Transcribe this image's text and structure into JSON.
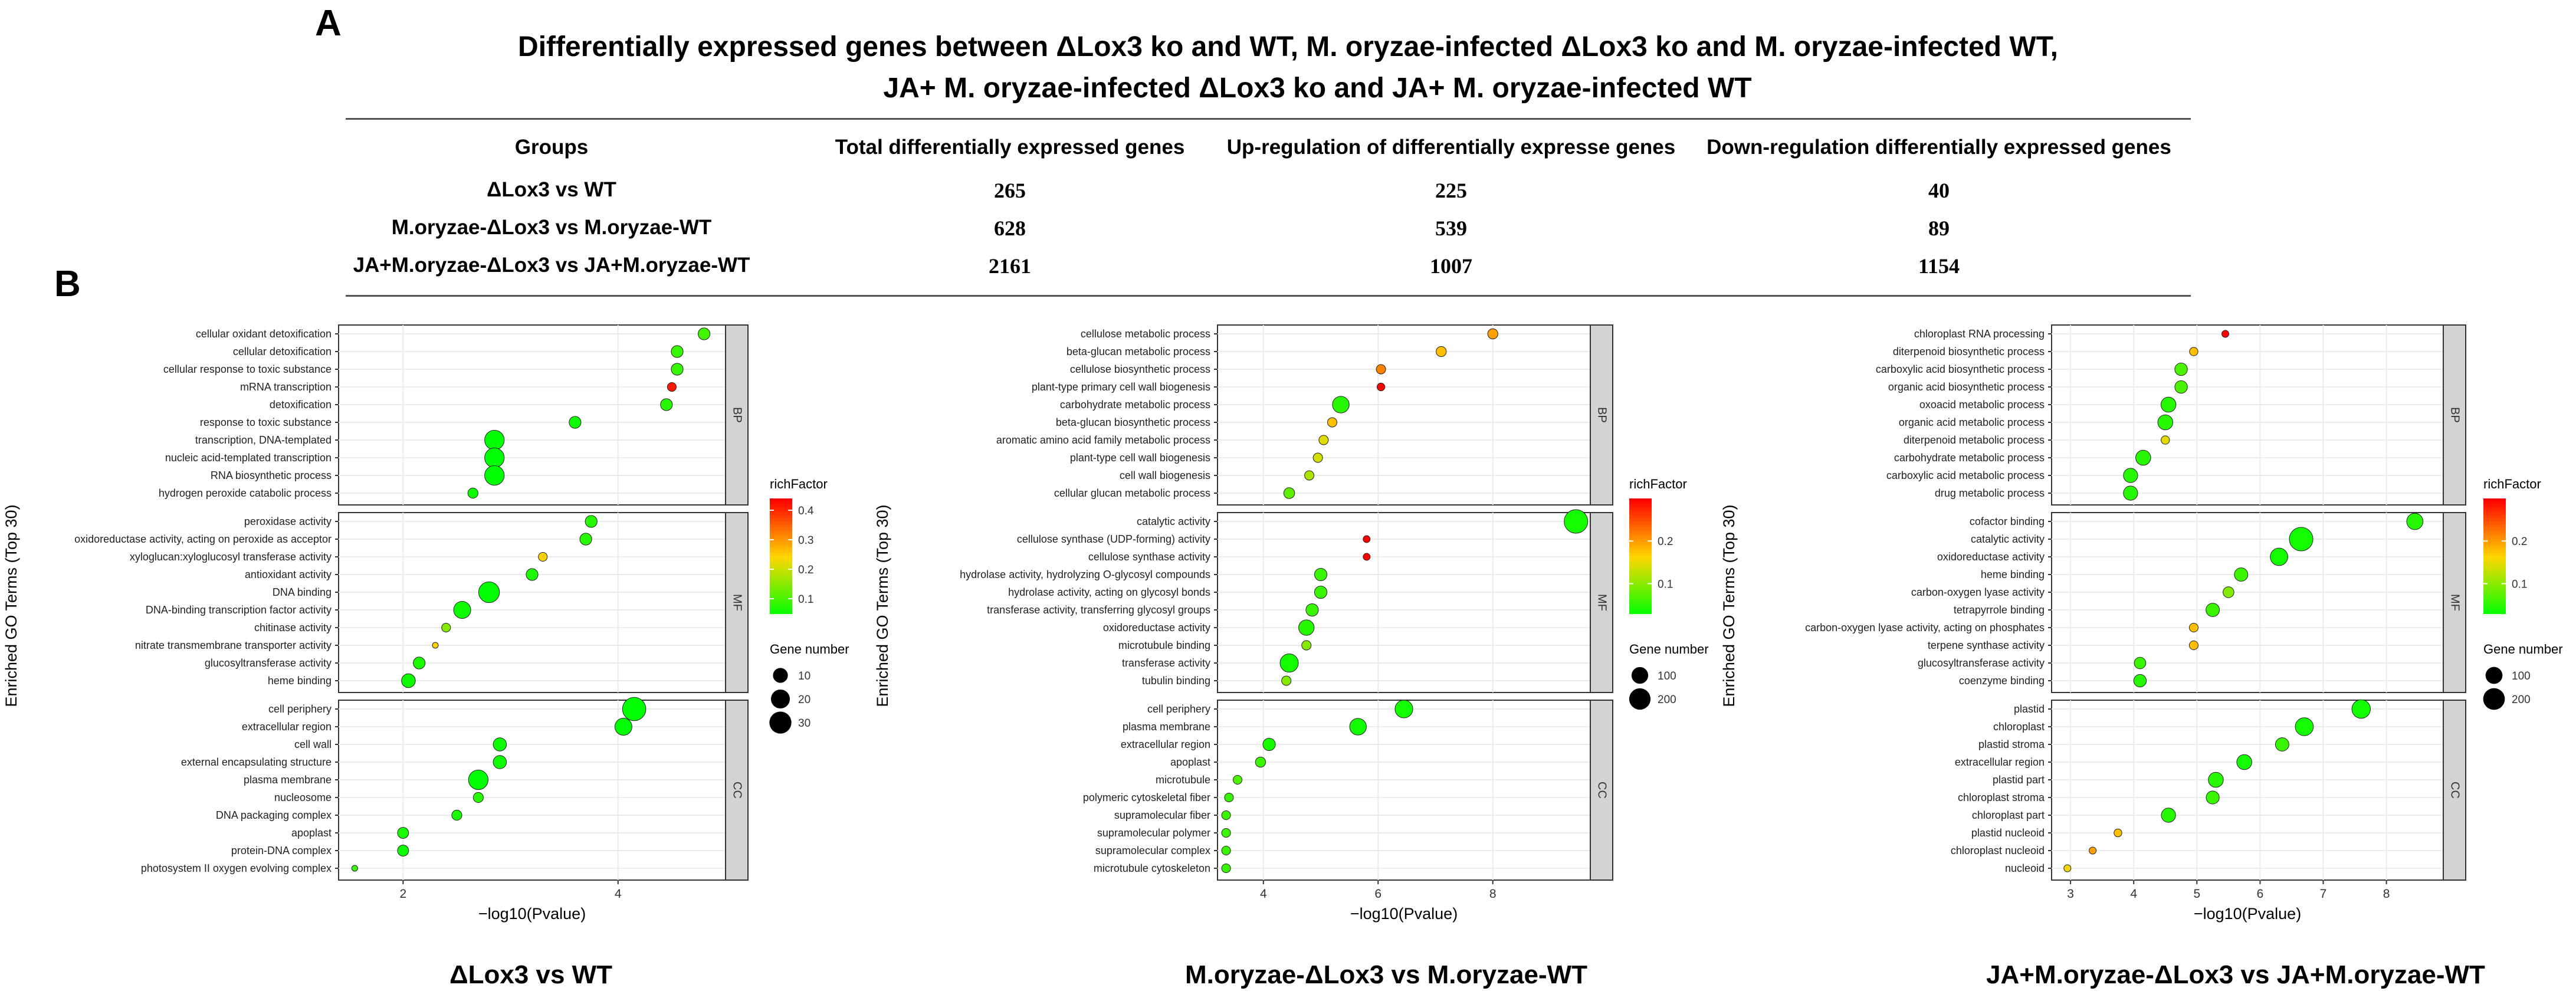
{
  "panel_a": {
    "label": "A",
    "title_line1": "Differentially expressed genes between ΔLox3 ko and WT, M. oryzae-infected ΔLox3 ko and M. oryzae-infected WT,",
    "title_line2": "JA+ M. oryzae-infected ΔLox3 ko  and JA+ M. oryzae-infected WT",
    "headers": [
      "Groups",
      "Total differentially expressed genes",
      "Up-regulation of differentially expresse genes",
      "Down-regulation differentially expressed genes"
    ],
    "rows": [
      {
        "group": "ΔLox3 vs WT",
        "total": "265",
        "up": "225",
        "down": "40"
      },
      {
        "group": "M.oryzae-ΔLox3 vs M.oryzae-WT",
        "total": "628",
        "up": "539",
        "down": "89"
      },
      {
        "group": "JA+M.oryzae-ΔLox3 vs JA+M.oryzae-WT",
        "total": "2161",
        "up": "1007",
        "down": "1154"
      }
    ]
  },
  "panel_b": {
    "label": "B",
    "captions": [
      "ΔLox3 vs WT",
      "M.oryzae-ΔLox3 vs M.oryzae-WT",
      "JA+M.oryzae-ΔLox3 vs JA+M.oryzae-WT"
    ]
  },
  "chart_data": [
    {
      "type": "scatter",
      "title": "ΔLox3 vs WT",
      "xlabel": "−log10(Pvalue)",
      "ylabel": "Enriched GO Terms (Top 30)",
      "xlim": [
        1.4,
        5.0
      ],
      "xticks": [
        2,
        4
      ],
      "color_legend": {
        "title": "richFactor",
        "min": 0.05,
        "max": 0.44,
        "ticks": [
          0.1,
          0.2,
          0.3,
          0.4
        ]
      },
      "size_legend": {
        "title": "Gene number",
        "values": [
          10,
          20,
          30
        ],
        "min": 1,
        "max": 36
      },
      "facets": [
        {
          "name": "BP",
          "terms": [
            {
              "term": "cellular oxidant detoxification",
              "x": 4.8,
              "rich": 0.1,
              "n": 5
            },
            {
              "term": "cellular detoxification",
              "x": 4.55,
              "rich": 0.09,
              "n": 5
            },
            {
              "term": "cellular response to toxic substance",
              "x": 4.55,
              "rich": 0.09,
              "n": 5
            },
            {
              "term": "mRNA transcription",
              "x": 4.5,
              "rich": 0.42,
              "n": 2
            },
            {
              "term": "detoxification",
              "x": 4.45,
              "rich": 0.08,
              "n": 5
            },
            {
              "term": "response to toxic substance",
              "x": 3.6,
              "rich": 0.06,
              "n": 5
            },
            {
              "term": "transcription, DNA-templated",
              "x": 2.85,
              "rich": 0.05,
              "n": 22
            },
            {
              "term": "nucleic acid-templated transcription",
              "x": 2.85,
              "rich": 0.05,
              "n": 22
            },
            {
              "term": "RNA biosynthetic process",
              "x": 2.85,
              "rich": 0.05,
              "n": 22
            },
            {
              "term": "hydrogen peroxide catabolic process",
              "x": 2.65,
              "rich": 0.06,
              "n": 3
            }
          ]
        },
        {
          "name": "MF",
          "terms": [
            {
              "term": "peroxidase activity",
              "x": 3.75,
              "rich": 0.08,
              "n": 5
            },
            {
              "term": "oxidoreductase activity, acting on peroxide as acceptor",
              "x": 3.7,
              "rich": 0.08,
              "n": 5
            },
            {
              "term": "xyloglucan:xyloglucosyl transferase activity",
              "x": 3.3,
              "rich": 0.25,
              "n": 2
            },
            {
              "term": "antioxidant activity",
              "x": 3.2,
              "rich": 0.07,
              "n": 5
            },
            {
              "term": "DNA binding",
              "x": 2.8,
              "rich": 0.05,
              "n": 26
            },
            {
              "term": "DNA-binding transcription factor activity",
              "x": 2.55,
              "rich": 0.06,
              "n": 15
            },
            {
              "term": "chitinase activity",
              "x": 2.4,
              "rich": 0.15,
              "n": 2
            },
            {
              "term": "nitrate transmembrane transporter activity",
              "x": 2.3,
              "rich": 0.25,
              "n": 1
            },
            {
              "term": "glucosyltransferase activity",
              "x": 2.15,
              "rich": 0.07,
              "n": 5
            },
            {
              "term": "heme binding",
              "x": 2.05,
              "rich": 0.06,
              "n": 8
            }
          ]
        },
        {
          "name": "CC",
          "terms": [
            {
              "term": "cell periphery",
              "x": 4.15,
              "rich": 0.05,
              "n": 35
            },
            {
              "term": "extracellular region",
              "x": 4.05,
              "rich": 0.05,
              "n": 15
            },
            {
              "term": "cell wall",
              "x": 2.9,
              "rich": 0.06,
              "n": 7
            },
            {
              "term": "external encapsulating structure",
              "x": 2.9,
              "rich": 0.06,
              "n": 7
            },
            {
              "term": "plasma membrane",
              "x": 2.7,
              "rich": 0.05,
              "n": 22
            },
            {
              "term": "nucleosome",
              "x": 2.7,
              "rich": 0.08,
              "n": 3
            },
            {
              "term": "DNA packaging complex",
              "x": 2.5,
              "rich": 0.07,
              "n": 3
            },
            {
              "term": "apoplast",
              "x": 2.0,
              "rich": 0.07,
              "n": 4
            },
            {
              "term": "protein-DNA complex",
              "x": 2.0,
              "rich": 0.06,
              "n": 4
            },
            {
              "term": "photosystem II oxygen evolving complex",
              "x": 1.55,
              "rich": 0.09,
              "n": 1
            }
          ]
        }
      ]
    },
    {
      "type": "scatter",
      "title": "M.oryzae-ΔLox3 vs M.oryzae-WT",
      "xlabel": "−log10(Pvalue)",
      "ylabel": "Enriched GO Terms (Top 30)",
      "xlim": [
        3.2,
        9.7
      ],
      "xticks": [
        4,
        6,
        8
      ],
      "color_legend": {
        "title": "richFactor",
        "min": 0.03,
        "max": 0.3,
        "ticks": [
          0.1,
          0.2
        ]
      },
      "size_legend": {
        "title": "Gene number",
        "values": [
          100,
          200
        ],
        "min": 5,
        "max": 260
      },
      "facets": [
        {
          "name": "BP",
          "terms": [
            {
              "term": "cellulose metabolic process",
              "x": 8.0,
              "rich": 0.2,
              "n": 20
            },
            {
              "term": "beta-glucan metabolic process",
              "x": 7.1,
              "rich": 0.18,
              "n": 20
            },
            {
              "term": "cellulose biosynthetic process",
              "x": 6.05,
              "rich": 0.22,
              "n": 15
            },
            {
              "term": "plant-type primary cell wall biogenesis",
              "x": 6.05,
              "rich": 0.3,
              "n": 8
            },
            {
              "term": "carbohydrate metabolic process",
              "x": 5.35,
              "rich": 0.05,
              "n": 100
            },
            {
              "term": "beta-glucan biosynthetic process",
              "x": 5.2,
              "rich": 0.18,
              "n": 15
            },
            {
              "term": "aromatic amino acid family metabolic process",
              "x": 5.05,
              "rich": 0.15,
              "n": 15
            },
            {
              "term": "plant-type cell wall biogenesis",
              "x": 4.95,
              "rich": 0.14,
              "n": 15
            },
            {
              "term": "cell wall biogenesis",
              "x": 4.8,
              "rich": 0.12,
              "n": 15
            },
            {
              "term": "cellular glucan metabolic process",
              "x": 4.45,
              "rich": 0.08,
              "n": 25
            }
          ]
        },
        {
          "name": "MF",
          "terms": [
            {
              "term": "catalytic activity",
              "x": 9.45,
              "rich": 0.04,
              "n": 260
            },
            {
              "term": "cellulose synthase (UDP-forming) activity",
              "x": 5.8,
              "rich": 0.3,
              "n": 6
            },
            {
              "term": "cellulose synthase activity",
              "x": 5.8,
              "rich": 0.3,
              "n": 6
            },
            {
              "term": "hydrolase activity, hydrolyzing O-glycosyl compounds",
              "x": 5.0,
              "rich": 0.06,
              "n": 40
            },
            {
              "term": "hydrolase activity, acting on glycosyl bonds",
              "x": 5.0,
              "rich": 0.06,
              "n": 40
            },
            {
              "term": "transferase activity, transferring glycosyl groups",
              "x": 4.85,
              "rich": 0.06,
              "n": 40
            },
            {
              "term": "oxidoreductase activity",
              "x": 4.75,
              "rich": 0.05,
              "n": 80
            },
            {
              "term": "microtubule binding",
              "x": 4.75,
              "rich": 0.1,
              "n": 15
            },
            {
              "term": "transferase activity",
              "x": 4.45,
              "rich": 0.04,
              "n": 130
            },
            {
              "term": "tubulin binding",
              "x": 4.4,
              "rich": 0.1,
              "n": 15
            }
          ]
        },
        {
          "name": "CC",
          "terms": [
            {
              "term": "cell periphery",
              "x": 6.45,
              "rich": 0.04,
              "n": 120
            },
            {
              "term": "plasma membrane",
              "x": 5.65,
              "rich": 0.04,
              "n": 100
            },
            {
              "term": "extracellular region",
              "x": 4.1,
              "rich": 0.04,
              "n": 40
            },
            {
              "term": "apoplast",
              "x": 3.95,
              "rich": 0.06,
              "n": 20
            },
            {
              "term": "microtubule",
              "x": 3.55,
              "rich": 0.07,
              "n": 12
            },
            {
              "term": "polymeric cytoskeletal fiber",
              "x": 3.4,
              "rich": 0.06,
              "n": 12
            },
            {
              "term": "supramolecular fiber",
              "x": 3.35,
              "rich": 0.06,
              "n": 12
            },
            {
              "term": "supramolecular polymer",
              "x": 3.35,
              "rich": 0.06,
              "n": 12
            },
            {
              "term": "supramolecular complex",
              "x": 3.35,
              "rich": 0.06,
              "n": 12
            },
            {
              "term": "microtubule cytoskeleton",
              "x": 3.35,
              "rich": 0.06,
              "n": 12
            }
          ]
        }
      ]
    },
    {
      "type": "scatter",
      "title": "JA+M.oryzae-ΔLox3 vs JA+M.oryzae-WT",
      "xlabel": "−log10(Pvalue)",
      "ylabel": "Enriched GO Terms (Top 30)",
      "xlim": [
        2.7,
        8.9
      ],
      "xticks": [
        3,
        4,
        5,
        6,
        7,
        8
      ],
      "color_legend": {
        "title": "richFactor",
        "min": 0.03,
        "max": 0.3,
        "ticks": [
          0.1,
          0.2
        ]
      },
      "size_legend": {
        "title": "Gene number",
        "values": [
          100,
          200
        ],
        "min": 5,
        "max": 250
      },
      "facets": [
        {
          "name": "BP",
          "terms": [
            {
              "term": "chloroplast RNA processing",
              "x": 5.45,
              "rich": 0.3,
              "n": 6
            },
            {
              "term": "diterpenoid biosynthetic process",
              "x": 4.95,
              "rich": 0.18,
              "n": 10
            },
            {
              "term": "carboxylic acid biosynthetic process",
              "x": 4.75,
              "rich": 0.07,
              "n": 40
            },
            {
              "term": "organic acid biosynthetic process",
              "x": 4.75,
              "rich": 0.07,
              "n": 40
            },
            {
              "term": "oxoacid metabolic process",
              "x": 4.55,
              "rich": 0.05,
              "n": 70
            },
            {
              "term": "organic acid metabolic process",
              "x": 4.5,
              "rich": 0.05,
              "n": 70
            },
            {
              "term": "diterpenoid metabolic process",
              "x": 4.5,
              "rich": 0.15,
              "n": 10
            },
            {
              "term": "carbohydrate metabolic process",
              "x": 4.15,
              "rich": 0.05,
              "n": 70
            },
            {
              "term": "carboxylic acid metabolic process",
              "x": 3.95,
              "rich": 0.05,
              "n": 60
            },
            {
              "term": "drug metabolic process",
              "x": 3.95,
              "rich": 0.05,
              "n": 60
            }
          ]
        },
        {
          "name": "MF",
          "terms": [
            {
              "term": "cofactor binding",
              "x": 8.45,
              "rich": 0.05,
              "n": 90
            },
            {
              "term": "catalytic activity",
              "x": 6.65,
              "rich": 0.04,
              "n": 250
            },
            {
              "term": "oxidoreductase activity",
              "x": 6.3,
              "rich": 0.04,
              "n": 110
            },
            {
              "term": "heme binding",
              "x": 5.7,
              "rich": 0.06,
              "n": 50
            },
            {
              "term": "carbon-oxygen lyase activity",
              "x": 5.5,
              "rich": 0.1,
              "n": 25
            },
            {
              "term": "tetrapyrrole binding",
              "x": 5.25,
              "rich": 0.06,
              "n": 50
            },
            {
              "term": "carbon-oxygen lyase activity, acting on phosphates",
              "x": 4.95,
              "rich": 0.18,
              "n": 12
            },
            {
              "term": "terpene synthase activity",
              "x": 4.95,
              "rich": 0.18,
              "n": 12
            },
            {
              "term": "glucosyltransferase activity",
              "x": 4.1,
              "rich": 0.06,
              "n": 30
            },
            {
              "term": "coenzyme binding",
              "x": 4.1,
              "rich": 0.05,
              "n": 40
            }
          ]
        },
        {
          "name": "CC",
          "terms": [
            {
              "term": "plastid",
              "x": 7.6,
              "rich": 0.04,
              "n": 130
            },
            {
              "term": "chloroplast",
              "x": 6.7,
              "rich": 0.04,
              "n": 120
            },
            {
              "term": "plastid stroma",
              "x": 6.35,
              "rich": 0.06,
              "n": 50
            },
            {
              "term": "extracellular region",
              "x": 5.75,
              "rich": 0.04,
              "n": 70
            },
            {
              "term": "plastid part",
              "x": 5.3,
              "rich": 0.05,
              "n": 70
            },
            {
              "term": "chloroplast stroma",
              "x": 5.25,
              "rich": 0.06,
              "n": 45
            },
            {
              "term": "chloroplast part",
              "x": 4.55,
              "rich": 0.05,
              "n": 60
            },
            {
              "term": "plastid nucleoid",
              "x": 3.75,
              "rich": 0.18,
              "n": 8
            },
            {
              "term": "chloroplast nucleoid",
              "x": 3.35,
              "rich": 0.2,
              "n": 6
            },
            {
              "term": "nucleoid",
              "x": 2.95,
              "rich": 0.16,
              "n": 6
            }
          ]
        }
      ]
    }
  ]
}
